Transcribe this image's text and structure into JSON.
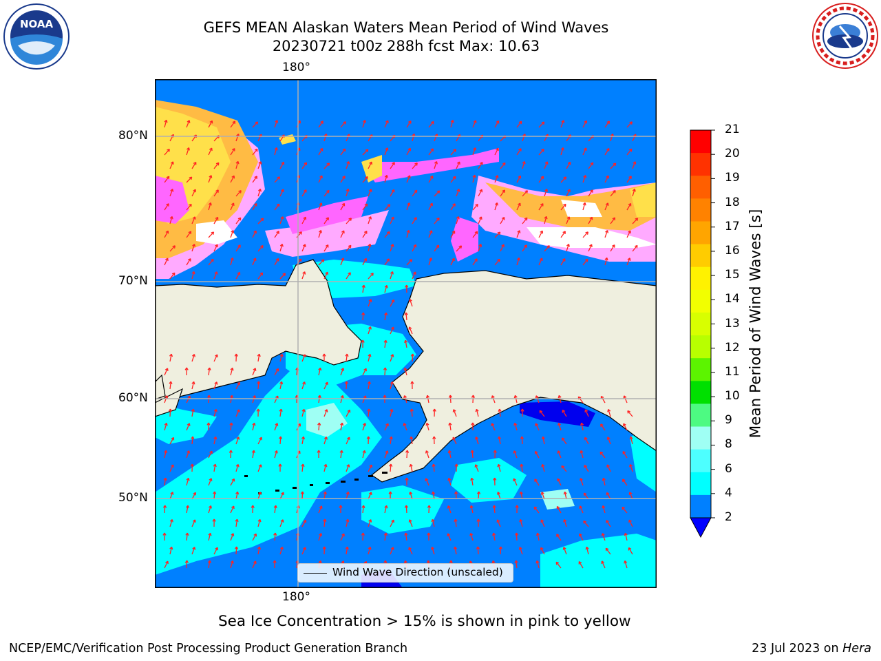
{
  "header": {
    "title_line1": "GEFS MEAN Alaskan Waters Mean Period of Wind Waves",
    "title_line2": "20230721 t00z 288h fcst   Max: 10.63"
  },
  "logos": {
    "noaa_text": "NOAA",
    "nws_ring_text": "NATIONAL WEATHER SERVICE"
  },
  "map": {
    "lon_label_top": "180°",
    "lon_label_bottom": "180°",
    "lat_labels": [
      "80°N",
      "70°N",
      "60°N",
      "50°N"
    ],
    "legend_label": "Wind Wave Direction (unscaled)",
    "colors": {
      "ocean_low": "#0080ff",
      "ocean_cyan": "#00ffff",
      "ocean_lightcyan": "#9ffff4",
      "ocean_darkblue": "#0000ee",
      "land": "#efefdf",
      "ice_pink": "#ff66ff",
      "ice_light": "#ffaaff",
      "ice_orange": "#ffbb44",
      "ice_yellow": "#ffe04a",
      "arrows": "#ff2222",
      "grid": "#b0b0b0"
    }
  },
  "colorbar": {
    "label": "Mean Period of Wind Waves [s]",
    "ticks": [
      "21",
      "20",
      "19",
      "18",
      "17",
      "16",
      "15",
      "14",
      "13",
      "12",
      "11",
      "10",
      "9",
      "8",
      "6",
      "4",
      "2"
    ],
    "bands_top_to_bottom": [
      "#ff0000",
      "#ff3200",
      "#ff5f00",
      "#ff8200",
      "#ffa500",
      "#ffcc00",
      "#fff200",
      "#f2ff00",
      "#d8ff00",
      "#b8ff00",
      "#5cf400",
      "#00e000",
      "#4dfa82",
      "#9ffff4",
      "#4dffff",
      "#00ffff",
      "#0080ff"
    ],
    "under_color": "#0000ff"
  },
  "caption": "Sea Ice Concentration > 15% is shown in pink to yellow",
  "footer": {
    "left": "NCEP/EMC/Verification Post Processing Product Generation Branch",
    "right_date": "23 Jul 2023 on ",
    "right_host": "Hera"
  }
}
